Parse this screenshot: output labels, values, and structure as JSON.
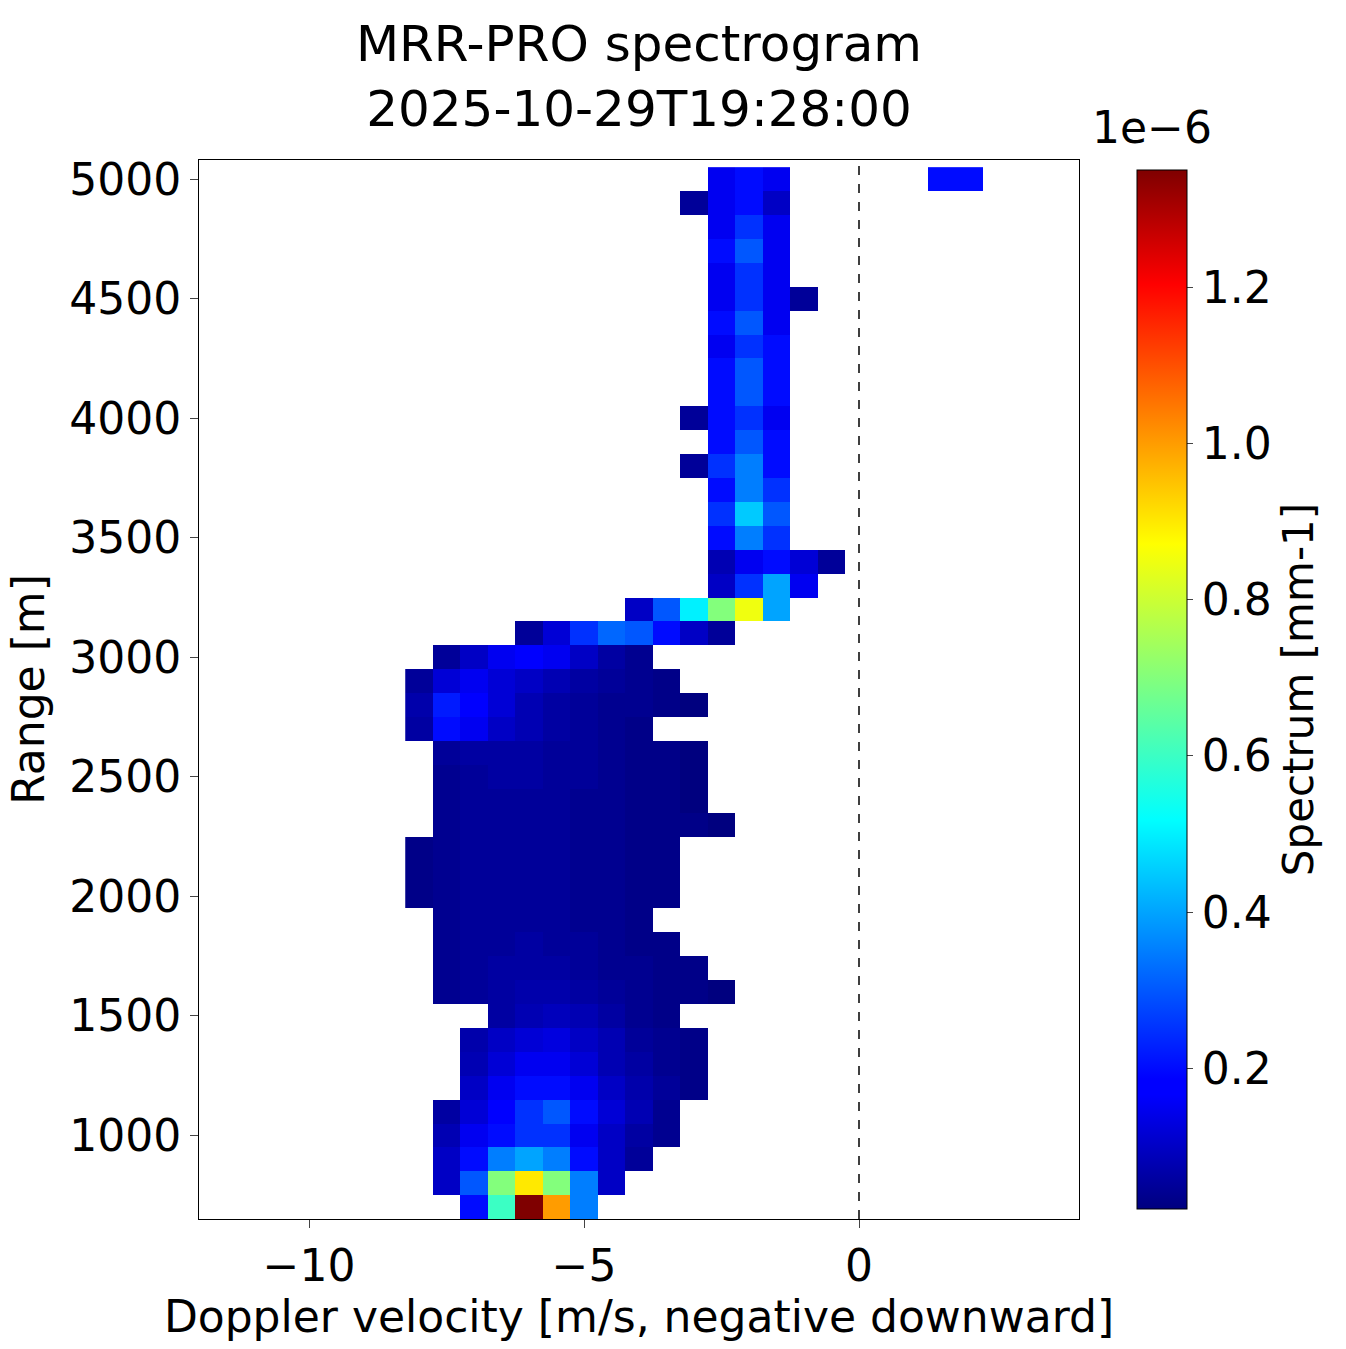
{
  "chart_data": {
    "type": "heatmap",
    "title": "MRR-PRO spectrogram\n2025-10-29T19:28:00",
    "x_label": "Doppler velocity [m/s, negative downward]",
    "y_label": "Range [m]",
    "x": [
      -8,
      -7.5,
      -7,
      -6.5,
      -6,
      -5.5,
      -5,
      -4.5,
      -4,
      -3.5,
      -3,
      -2.5,
      -2,
      -1.5,
      -1,
      -0.5,
      0,
      0.5,
      1,
      1.5,
      2,
      2.5
    ],
    "y": [
      700,
      800,
      900,
      1000,
      1100,
      1200,
      1300,
      1400,
      1500,
      1600,
      1700,
      1800,
      1900,
      2000,
      2100,
      2200,
      2300,
      2400,
      2500,
      2600,
      2700,
      2800,
      2900,
      3000,
      3100,
      3200,
      3300,
      3400,
      3500,
      3600,
      3700,
      3800,
      3900,
      4000,
      4100,
      4200,
      4300,
      4400,
      4500,
      4600,
      4700,
      4800,
      4900,
      5000
    ],
    "cells": [
      [
        null,
        null,
        0.2,
        0.6,
        1.35,
        1.0,
        0.35,
        null,
        null,
        null,
        null,
        null,
        null,
        null,
        null,
        null,
        null,
        null,
        null,
        null,
        null,
        null
      ],
      [
        null,
        0.1,
        0.3,
        0.7,
        0.9,
        0.7,
        0.35,
        0.1,
        null,
        null,
        null,
        null,
        null,
        null,
        null,
        null,
        null,
        null,
        null,
        null,
        null,
        null
      ],
      [
        null,
        0.1,
        0.2,
        0.35,
        0.4,
        0.35,
        0.2,
        0.1,
        0.05,
        null,
        null,
        null,
        null,
        null,
        null,
        null,
        null,
        null,
        null,
        null,
        null,
        null
      ],
      [
        null,
        0.08,
        0.15,
        0.2,
        0.25,
        0.25,
        0.15,
        0.1,
        0.06,
        0.04,
        null,
        null,
        null,
        null,
        null,
        null,
        null,
        null,
        null,
        null,
        null,
        null
      ],
      [
        null,
        0.06,
        0.12,
        0.18,
        0.25,
        0.3,
        0.2,
        0.12,
        0.08,
        0.04,
        null,
        null,
        null,
        null,
        null,
        null,
        null,
        null,
        null,
        null,
        null,
        null
      ],
      [
        null,
        null,
        0.1,
        0.15,
        0.2,
        0.2,
        0.15,
        0.1,
        0.07,
        0.05,
        0.03,
        null,
        null,
        null,
        null,
        null,
        null,
        null,
        null,
        null,
        null,
        null
      ],
      [
        null,
        null,
        0.08,
        0.12,
        0.15,
        0.15,
        0.12,
        0.08,
        0.06,
        0.04,
        0.03,
        null,
        null,
        null,
        null,
        null,
        null,
        null,
        null,
        null,
        null,
        null
      ],
      [
        null,
        null,
        0.07,
        0.1,
        0.12,
        0.13,
        0.1,
        0.08,
        0.05,
        0.04,
        0.03,
        null,
        null,
        null,
        null,
        null,
        null,
        null,
        null,
        null,
        null,
        null
      ],
      [
        null,
        null,
        null,
        0.06,
        0.08,
        0.09,
        0.08,
        0.06,
        0.04,
        0.03,
        null,
        null,
        null,
        null,
        null,
        null,
        null,
        null,
        null,
        null,
        null,
        null
      ],
      [
        null,
        0.04,
        0.05,
        0.06,
        0.07,
        0.07,
        0.06,
        0.05,
        0.04,
        0.03,
        0.03,
        0.02,
        null,
        null,
        null,
        null,
        null,
        null,
        null,
        null,
        null,
        null
      ],
      [
        null,
        0.04,
        0.05,
        0.06,
        0.06,
        0.06,
        0.05,
        0.04,
        0.04,
        0.03,
        0.03,
        null,
        null,
        null,
        null,
        null,
        null,
        null,
        null,
        null,
        null,
        null
      ],
      [
        null,
        0.04,
        0.05,
        0.05,
        0.06,
        0.05,
        0.05,
        0.04,
        0.03,
        0.03,
        null,
        null,
        null,
        null,
        null,
        null,
        null,
        null,
        null,
        null,
        null,
        null
      ],
      [
        null,
        0.04,
        0.05,
        0.05,
        0.05,
        0.05,
        0.04,
        0.04,
        0.03,
        null,
        null,
        null,
        null,
        null,
        null,
        null,
        null,
        null,
        null,
        null,
        null,
        null
      ],
      [
        0.03,
        0.04,
        0.05,
        0.05,
        0.05,
        0.05,
        0.04,
        0.04,
        0.03,
        0.03,
        null,
        null,
        null,
        null,
        null,
        null,
        null,
        null,
        null,
        null,
        null,
        null
      ],
      [
        0.03,
        0.04,
        0.05,
        0.05,
        0.05,
        0.05,
        0.04,
        0.04,
        0.03,
        0.03,
        null,
        null,
        null,
        null,
        null,
        null,
        null,
        null,
        null,
        null,
        null,
        null
      ],
      [
        0.03,
        0.04,
        0.05,
        0.05,
        0.05,
        0.05,
        0.04,
        0.04,
        0.03,
        0.03,
        null,
        null,
        null,
        null,
        null,
        null,
        null,
        null,
        null,
        null,
        null,
        null
      ],
      [
        null,
        0.04,
        0.05,
        0.05,
        0.05,
        0.05,
        0.04,
        0.04,
        0.03,
        0.03,
        0.03,
        0.02,
        null,
        null,
        null,
        null,
        null,
        null,
        null,
        null,
        null,
        null
      ],
      [
        null,
        0.04,
        0.05,
        0.05,
        0.05,
        0.05,
        0.04,
        0.04,
        0.03,
        0.03,
        0.02,
        null,
        null,
        null,
        null,
        null,
        null,
        null,
        null,
        null,
        null,
        null
      ],
      [
        null,
        0.04,
        0.05,
        0.06,
        0.06,
        0.05,
        0.05,
        0.04,
        0.03,
        0.03,
        0.02,
        null,
        null,
        null,
        null,
        null,
        null,
        null,
        null,
        null,
        null,
        null
      ],
      [
        null,
        0.05,
        0.06,
        0.06,
        0.06,
        0.05,
        0.05,
        0.04,
        0.03,
        0.03,
        0.02,
        null,
        null,
        null,
        null,
        null,
        null,
        null,
        null,
        null,
        null,
        null
      ],
      [
        0.06,
        0.2,
        0.15,
        0.1,
        0.08,
        0.06,
        0.05,
        0.04,
        0.03,
        null,
        null,
        null,
        null,
        null,
        null,
        null,
        null,
        null,
        null,
        null,
        null,
        null
      ],
      [
        0.07,
        0.22,
        0.18,
        0.12,
        0.08,
        0.06,
        0.05,
        0.04,
        0.04,
        0.03,
        0.02,
        null,
        null,
        null,
        null,
        null,
        null,
        null,
        null,
        null,
        null,
        null
      ],
      [
        0.05,
        0.12,
        0.15,
        0.12,
        0.1,
        0.08,
        0.06,
        0.05,
        0.04,
        0.03,
        null,
        null,
        null,
        null,
        null,
        null,
        null,
        null,
        null,
        null,
        null,
        null
      ],
      [
        null,
        0.05,
        0.1,
        0.15,
        0.18,
        0.15,
        0.1,
        0.06,
        0.04,
        null,
        null,
        null,
        null,
        null,
        null,
        null,
        null,
        null,
        null,
        null,
        null,
        null
      ],
      [
        null,
        null,
        null,
        null,
        0.05,
        0.12,
        0.25,
        0.32,
        0.3,
        0.2,
        0.1,
        0.05,
        null,
        null,
        null,
        null,
        null,
        null,
        null,
        null,
        null,
        null
      ],
      [
        null,
        null,
        null,
        null,
        null,
        null,
        null,
        null,
        0.1,
        0.3,
        0.5,
        0.7,
        0.85,
        0.4,
        null,
        null,
        null,
        null,
        null,
        null,
        null,
        null
      ],
      [
        null,
        null,
        null,
        null,
        null,
        null,
        null,
        null,
        null,
        null,
        null,
        0.1,
        0.25,
        0.4,
        0.15,
        null,
        null,
        null,
        null,
        null,
        null,
        null
      ],
      [
        null,
        null,
        null,
        null,
        null,
        null,
        null,
        null,
        null,
        null,
        null,
        0.08,
        0.15,
        0.2,
        0.12,
        0.05,
        null,
        null,
        null,
        null,
        null,
        null
      ],
      [
        null,
        null,
        null,
        null,
        null,
        null,
        null,
        null,
        null,
        null,
        null,
        0.2,
        0.35,
        0.25,
        null,
        null,
        null,
        null,
        null,
        null,
        null,
        null
      ],
      [
        null,
        null,
        null,
        null,
        null,
        null,
        null,
        null,
        null,
        null,
        null,
        0.25,
        0.45,
        0.3,
        null,
        null,
        null,
        null,
        null,
        null,
        null,
        null
      ],
      [
        null,
        null,
        null,
        null,
        null,
        null,
        null,
        null,
        null,
        null,
        null,
        0.2,
        0.35,
        0.25,
        null,
        null,
        null,
        null,
        null,
        null,
        null,
        null
      ],
      [
        null,
        null,
        null,
        null,
        null,
        null,
        null,
        null,
        null,
        null,
        0.05,
        0.25,
        0.35,
        0.2,
        null,
        null,
        null,
        null,
        null,
        null,
        null,
        null
      ],
      [
        null,
        null,
        null,
        null,
        null,
        null,
        null,
        null,
        null,
        null,
        null,
        0.2,
        0.3,
        0.2,
        null,
        null,
        null,
        null,
        null,
        null,
        null,
        null
      ],
      [
        null,
        null,
        null,
        null,
        null,
        null,
        null,
        null,
        null,
        null,
        0.05,
        0.2,
        0.25,
        0.15,
        null,
        null,
        null,
        null,
        null,
        null,
        null,
        null
      ],
      [
        null,
        null,
        null,
        null,
        null,
        null,
        null,
        null,
        null,
        null,
        null,
        0.2,
        0.3,
        0.2,
        null,
        null,
        null,
        null,
        null,
        null,
        null,
        null
      ],
      [
        null,
        null,
        null,
        null,
        null,
        null,
        null,
        null,
        null,
        null,
        null,
        0.2,
        0.3,
        0.2,
        null,
        null,
        null,
        null,
        null,
        null,
        null,
        null
      ],
      [
        null,
        null,
        null,
        null,
        null,
        null,
        null,
        null,
        null,
        null,
        null,
        0.15,
        0.25,
        0.2,
        null,
        null,
        null,
        null,
        null,
        null,
        null,
        null
      ],
      [
        null,
        null,
        null,
        null,
        null,
        null,
        null,
        null,
        null,
        null,
        null,
        0.2,
        0.3,
        0.15,
        null,
        null,
        null,
        null,
        null,
        null,
        null,
        null
      ],
      [
        null,
        null,
        null,
        null,
        null,
        null,
        null,
        null,
        null,
        null,
        null,
        0.15,
        0.25,
        0.15,
        0.05,
        null,
        null,
        null,
        null,
        null,
        null,
        null
      ],
      [
        null,
        null,
        null,
        null,
        null,
        null,
        null,
        null,
        null,
        null,
        null,
        0.15,
        0.25,
        0.15,
        null,
        null,
        null,
        null,
        null,
        null,
        null,
        null
      ],
      [
        null,
        null,
        null,
        null,
        null,
        null,
        null,
        null,
        null,
        null,
        null,
        0.2,
        0.3,
        0.15,
        null,
        null,
        null,
        null,
        null,
        null,
        null,
        null
      ],
      [
        null,
        null,
        null,
        null,
        null,
        null,
        null,
        null,
        null,
        null,
        null,
        0.15,
        0.25,
        0.15,
        null,
        null,
        null,
        null,
        null,
        null,
        null,
        null
      ],
      [
        null,
        null,
        null,
        null,
        null,
        null,
        null,
        null,
        null,
        null,
        0.05,
        0.15,
        0.2,
        0.1,
        null,
        null,
        null,
        null,
        null,
        null,
        null,
        null
      ],
      [
        null,
        null,
        null,
        null,
        null,
        null,
        null,
        null,
        null,
        null,
        null,
        0.15,
        0.2,
        0.15,
        null,
        null,
        null,
        null,
        null,
        0.2,
        0.2,
        null
      ]
    ],
    "xlim": [
      -12,
      4
    ],
    "xticks": [
      {
        "value": -10,
        "label": "−10"
      },
      {
        "value": -5,
        "label": "−5"
      },
      0
    ],
    "ylim": [
      650,
      5080
    ],
    "yticks": [
      1000,
      1500,
      2000,
      2500,
      3000,
      3500,
      4000,
      4500,
      5000
    ],
    "colorbar": {
      "title": "Spectrum [mm-1]",
      "multiplier": "1e−6",
      "range": [
        0.02,
        1.35
      ],
      "ticks": [
        0.2,
        0.4,
        0.6,
        0.8,
        {
          "value": 1,
          "label": "1.0"
        },
        1.2
      ]
    },
    "reference_line": {
      "x": 0,
      "line_style": "dashed"
    },
    "grid": false
  }
}
